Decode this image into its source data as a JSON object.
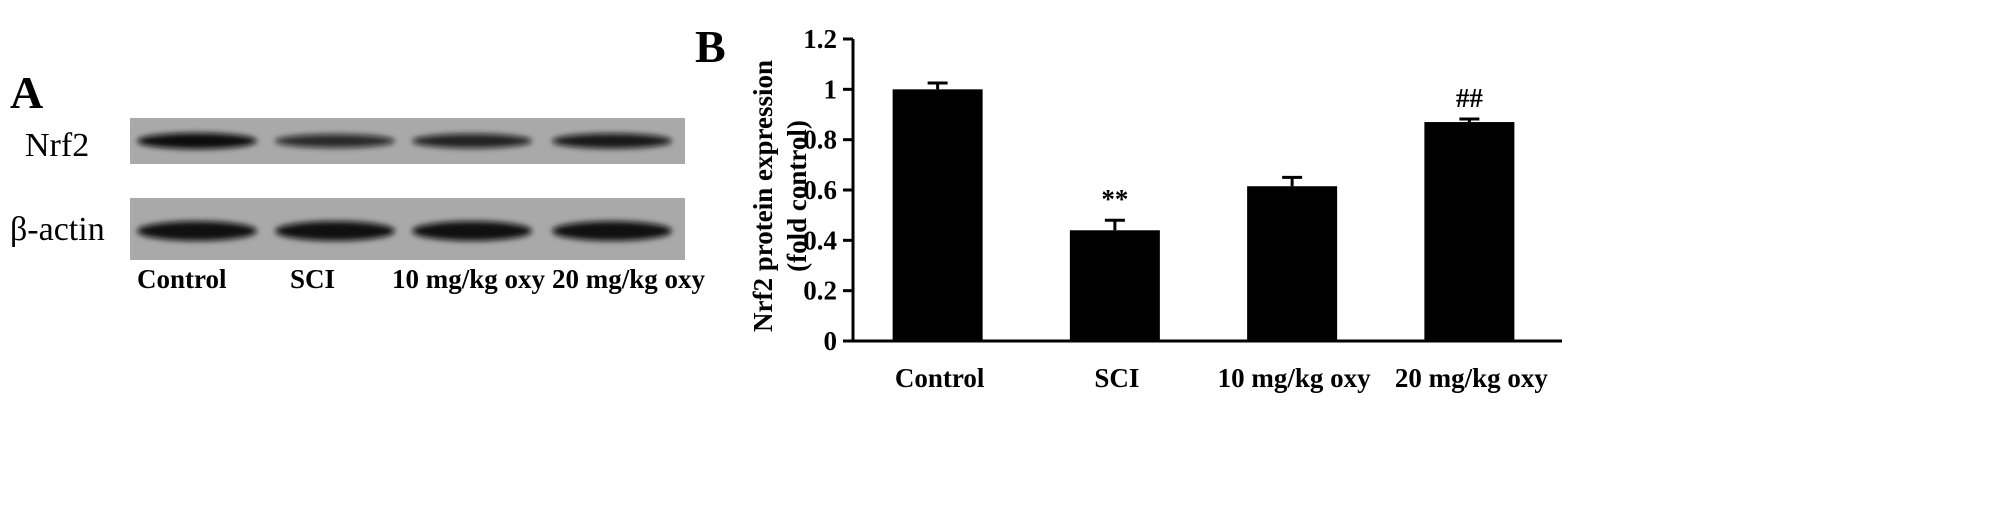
{
  "panel_a": {
    "letter": "A",
    "rows": [
      {
        "label": "Nrf2",
        "band_intensity": [
          1.0,
          0.62,
          0.72,
          0.84
        ]
      },
      {
        "label": "β-actin",
        "band_intensity": [
          0.95,
          0.95,
          0.95,
          0.95
        ]
      }
    ],
    "lanes": [
      "Control",
      "SCI",
      "10 mg/kg oxy",
      "20 mg/kg oxy"
    ]
  },
  "panel_b": {
    "letter": "B"
  },
  "chart_data": {
    "type": "bar",
    "categories": [
      "Control",
      "SCI",
      "10 mg/kg oxy",
      "20 mg/kg oxy"
    ],
    "values": [
      1.0,
      0.44,
      0.615,
      0.87
    ],
    "errors": [
      0.025,
      0.04,
      0.035,
      0.012
    ],
    "annotations": [
      "",
      "**",
      "",
      "##"
    ],
    "ylabel_line1": "Nrf2 protein expression",
    "ylabel_line2": "(fold control)",
    "xlabel": "",
    "ylim": [
      0,
      1.2
    ],
    "yticks": [
      0,
      0.2,
      0.4,
      0.6,
      0.8,
      1,
      1.2
    ],
    "ytick_labels": [
      "0",
      "0.2",
      "0.4",
      "0.6",
      "0.8",
      "1",
      "1.2"
    ],
    "grid": false,
    "bar_color": "#000000"
  }
}
